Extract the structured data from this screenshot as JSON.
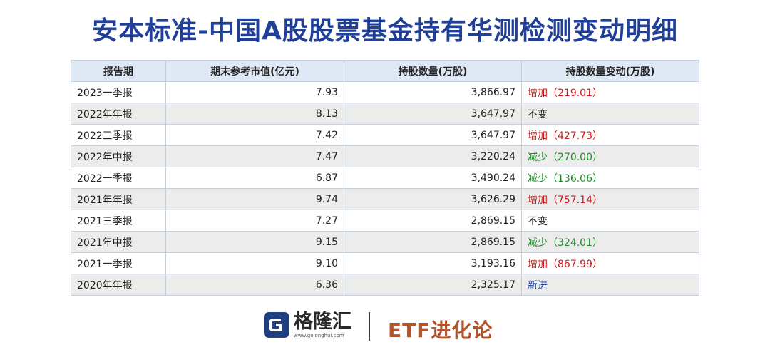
{
  "title": "安本标准-中国A股股票基金持有华测检测变动明细",
  "table": {
    "headers": [
      "报告期",
      "期末参考市值(亿元)",
      "持股数量(万股)",
      "持股数量变动(万股)"
    ],
    "rows": [
      {
        "period": "2023一季报",
        "market_value": "7.93",
        "shares": "3,866.97",
        "change": "增加（219.01）",
        "change_type": "increase"
      },
      {
        "period": "2022年年报",
        "market_value": "8.13",
        "shares": "3,647.97",
        "change": "不变",
        "change_type": "same"
      },
      {
        "period": "2022三季报",
        "market_value": "7.42",
        "shares": "3,647.97",
        "change": "增加（427.73）",
        "change_type": "increase"
      },
      {
        "period": "2022年中报",
        "market_value": "7.47",
        "shares": "3,220.24",
        "change": "减少（270.00）",
        "change_type": "decrease"
      },
      {
        "period": "2022一季报",
        "market_value": "6.87",
        "shares": "3,490.24",
        "change": "减少（136.06）",
        "change_type": "decrease"
      },
      {
        "period": "2021年年报",
        "market_value": "9.74",
        "shares": "3,626.29",
        "change": "增加（757.14）",
        "change_type": "increase"
      },
      {
        "period": "2021三季报",
        "market_value": "7.27",
        "shares": "2,869.15",
        "change": "不变",
        "change_type": "same"
      },
      {
        "period": "2021年中报",
        "market_value": "9.15",
        "shares": "2,869.15",
        "change": "减少（324.01）",
        "change_type": "decrease"
      },
      {
        "period": "2021一季报",
        "market_value": "9.10",
        "shares": "3,193.16",
        "change": "增加（867.99）",
        "change_type": "increase"
      },
      {
        "period": "2020年年报",
        "market_value": "6.36",
        "shares": "2,325.17",
        "change": "新进",
        "change_type": "new"
      }
    ]
  },
  "footer": {
    "logo_icon": "gelonghui-logo-icon",
    "logo_name": "格隆汇",
    "logo_url": "www.gelonghui.com",
    "brand": "ETF进化论"
  },
  "colors": {
    "title": "#1f3f99",
    "header_bg": "#dfe9f6",
    "increase": "#d01a1a",
    "decrease": "#1f8a2a",
    "new": "#1a3fa8",
    "brand": "#b2542a"
  }
}
